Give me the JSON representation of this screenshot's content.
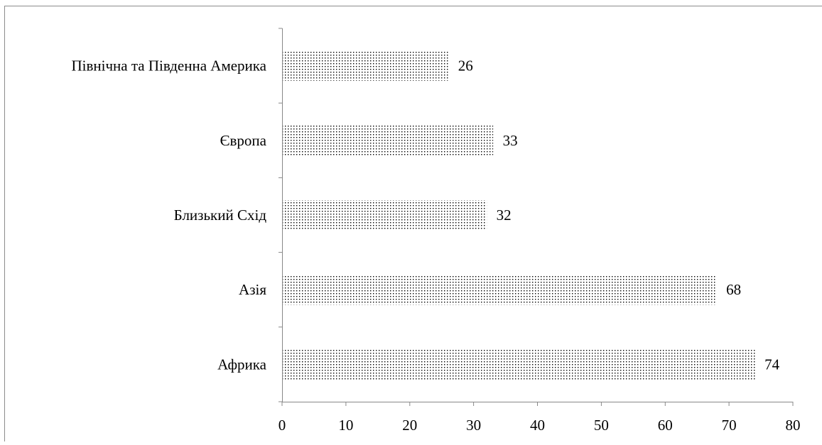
{
  "chart_data": {
    "type": "bar",
    "orientation": "horizontal",
    "categories": [
      "Північна та Південна Америка",
      "Європа",
      "Близький Схід",
      "Азія",
      "Африка"
    ],
    "values": [
      26,
      33,
      32,
      68,
      74
    ],
    "data_labels": [
      "26",
      "33",
      "32",
      "68",
      "74"
    ],
    "xlim": [
      0,
      80
    ],
    "x_ticks": [
      0,
      10,
      20,
      30,
      40,
      50,
      60,
      70,
      80
    ],
    "x_tick_labels": [
      "0",
      "10",
      "20",
      "30",
      "40",
      "50",
      "60",
      "70",
      "80"
    ],
    "grid": false,
    "legend": "none",
    "bar_fill": "dotted pattern",
    "colors": {
      "bar_dots": "#000000",
      "bar_background": "#ffffff",
      "axis": "#888888",
      "frame": "#888888"
    }
  }
}
